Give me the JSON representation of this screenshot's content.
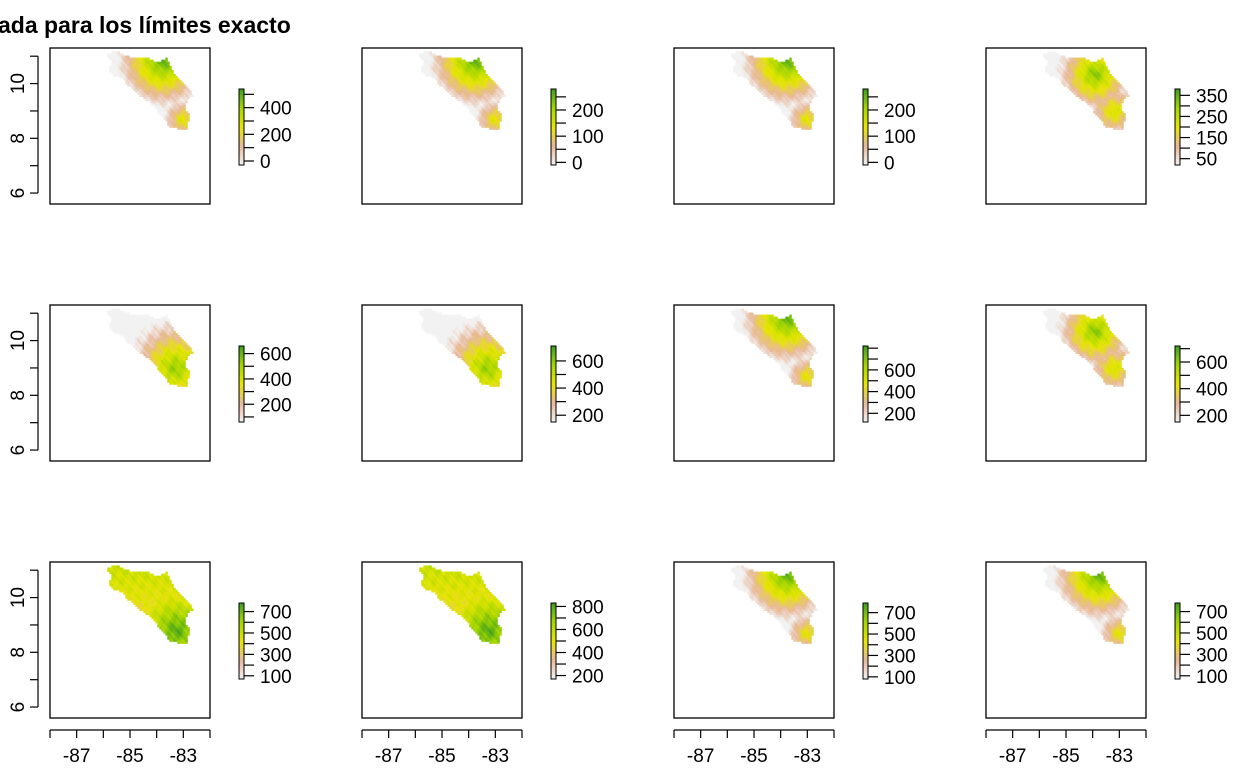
{
  "title": "ada para los límites exacto",
  "chart_data": {
    "type": "heatmap",
    "description_of_grid": "4x3 small multiples of a raster map",
    "x_ticks": [
      -88,
      -87,
      -86,
      -85,
      -84,
      -83,
      -82
    ],
    "x_tick_labels": [
      "-87",
      "-85",
      "-83"
    ],
    "y_ticks": [
      6,
      7,
      8,
      9,
      10,
      11
    ],
    "y_tick_labels": [
      "6",
      "8",
      "10"
    ],
    "xlim": [
      -88.0,
      -82.0
    ],
    "ylim": [
      5.6,
      11.3
    ],
    "colors": {
      "low": "#f2f2f2",
      "low_mid": "#e8b89a",
      "mid": "#e6e600",
      "mid_high": "#a6d600",
      "high": "#3ea01f",
      "frame": "#000000"
    },
    "panels": [
      {
        "row": 0,
        "col": 0,
        "pattern": "ne",
        "legend": {
          "min": -30,
          "max": 540,
          "ticks": [
            0,
            100,
            200,
            300,
            400,
            500
          ],
          "labels": [
            "0",
            "200",
            "400"
          ]
        }
      },
      {
        "row": 0,
        "col": 1,
        "pattern": "ne",
        "legend": {
          "min": -10,
          "max": 280,
          "ticks": [
            0,
            50,
            100,
            150,
            200,
            250
          ],
          "labels": [
            "0",
            "100",
            "200"
          ]
        }
      },
      {
        "row": 0,
        "col": 2,
        "pattern": "ne",
        "legend": {
          "min": -10,
          "max": 280,
          "ticks": [
            0,
            50,
            100,
            150,
            200,
            250
          ],
          "labels": [
            "0",
            "100",
            "200"
          ]
        }
      },
      {
        "row": 0,
        "col": 3,
        "pattern": "central",
        "legend": {
          "min": 20,
          "max": 380,
          "ticks": [
            50,
            100,
            150,
            200,
            250,
            300,
            350
          ],
          "labels": [
            "50",
            "150",
            "250",
            "350"
          ]
        }
      },
      {
        "row": 1,
        "col": 0,
        "pattern": "south",
        "legend": {
          "min": 60,
          "max": 660,
          "ticks": [
            100,
            200,
            300,
            400,
            500,
            600
          ],
          "labels": [
            "200",
            "400",
            "600"
          ]
        }
      },
      {
        "row": 1,
        "col": 1,
        "pattern": "south",
        "legend": {
          "min": 150,
          "max": 710,
          "ticks": [
            200,
            300,
            400,
            500,
            600
          ],
          "labels": [
            "200",
            "400",
            "600"
          ]
        }
      },
      {
        "row": 1,
        "col": 2,
        "pattern": "ne",
        "legend": {
          "min": 120,
          "max": 820,
          "ticks": [
            200,
            300,
            400,
            500,
            600,
            700,
            800
          ],
          "labels": [
            "200",
            "400",
            "600"
          ]
        }
      },
      {
        "row": 1,
        "col": 3,
        "pattern": "central",
        "legend": {
          "min": 150,
          "max": 720,
          "ticks": [
            200,
            300,
            400,
            500,
            600,
            700
          ],
          "labels": [
            "200",
            "400",
            "600"
          ]
        }
      },
      {
        "row": 2,
        "col": 0,
        "pattern": "south-strong",
        "legend": {
          "min": 70,
          "max": 780,
          "ticks": [
            100,
            200,
            300,
            400,
            500,
            600,
            700
          ],
          "labels": [
            "100",
            "300",
            "500",
            "700"
          ]
        }
      },
      {
        "row": 2,
        "col": 1,
        "pattern": "south-strong",
        "legend": {
          "min": 170,
          "max": 830,
          "ticks": [
            200,
            300,
            400,
            500,
            600,
            700,
            800
          ],
          "labels": [
            "200",
            "400",
            "600",
            "800"
          ]
        }
      },
      {
        "row": 2,
        "col": 2,
        "pattern": "ne",
        "legend": {
          "min": 80,
          "max": 790,
          "ticks": [
            100,
            200,
            300,
            400,
            500,
            600,
            700
          ],
          "labels": [
            "100",
            "300",
            "500",
            "700"
          ]
        }
      },
      {
        "row": 2,
        "col": 3,
        "pattern": "ne",
        "legend": {
          "min": 70,
          "max": 780,
          "ticks": [
            100,
            200,
            300,
            400,
            500,
            600,
            700
          ],
          "labels": [
            "100",
            "300",
            "500",
            "700"
          ]
        }
      }
    ]
  }
}
